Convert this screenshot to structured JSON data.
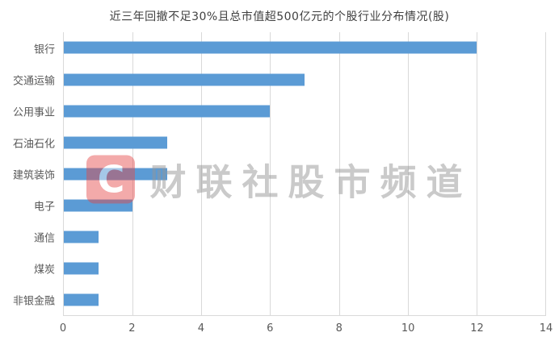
{
  "title": "近三年回撤不足30%且总市值超500亿元的个股行业分布情况(股)",
  "watermark": {
    "logo_letter": "C",
    "logo_color": "#e64545",
    "text": "财联社股市频道"
  },
  "chart_data": {
    "type": "bar",
    "orientation": "horizontal",
    "title": "近三年回撤不足30%且总市值超500亿元的个股行业分布情况(股)",
    "categories": [
      "银行",
      "交通运输",
      "公用事业",
      "石油石化",
      "建筑装饰",
      "电子",
      "通信",
      "煤炭",
      "非银金融"
    ],
    "values": [
      12,
      7,
      6,
      3,
      3,
      2,
      1,
      1,
      1
    ],
    "xlabel": "",
    "ylabel": "",
    "xlim": [
      0,
      14
    ],
    "xticks": [
      0,
      2,
      4,
      6,
      8,
      10,
      12,
      14
    ],
    "bar_color": "#5B9BD5",
    "grid": true,
    "legend": false
  }
}
